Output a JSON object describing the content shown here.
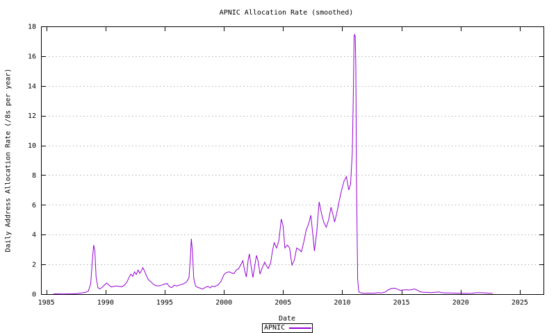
{
  "colors": {
    "background": "#ffffff",
    "frame": "#000000",
    "grid": "#b0b0b0",
    "text": "#000000",
    "series_apnic": "#9400d3"
  },
  "chart_data": {
    "type": "line",
    "title": "APNIC Allocation Rate (smoothed)",
    "xlabel": "Date",
    "ylabel": "Daily Address Allocation Rate (/8s per year)",
    "xlim": [
      1984.55,
      2027.0
    ],
    "ylim": [
      0,
      18
    ],
    "x_ticks": [
      1985,
      1990,
      1995,
      2000,
      2005,
      2010,
      2015,
      2020,
      2025
    ],
    "y_ticks": [
      0,
      2,
      4,
      6,
      8,
      10,
      12,
      14,
      16,
      18
    ],
    "grid": "horizontal-dotted",
    "legend_position": "below-plot-center",
    "series": [
      {
        "name": "APNIC",
        "color": "#9400d3",
        "points": [
          [
            1985.6,
            0.02
          ],
          [
            1986.0,
            0.02
          ],
          [
            1986.4,
            0.01
          ],
          [
            1986.8,
            0.02
          ],
          [
            1987.2,
            0.02
          ],
          [
            1987.6,
            0.04
          ],
          [
            1988.0,
            0.08
          ],
          [
            1988.3,
            0.12
          ],
          [
            1988.55,
            0.2
          ],
          [
            1988.75,
            0.7
          ],
          [
            1988.9,
            2.4
          ],
          [
            1989.0,
            3.3
          ],
          [
            1989.1,
            2.9
          ],
          [
            1989.2,
            1.2
          ],
          [
            1989.35,
            0.45
          ],
          [
            1989.5,
            0.35
          ],
          [
            1989.7,
            0.45
          ],
          [
            1989.9,
            0.6
          ],
          [
            1990.1,
            0.75
          ],
          [
            1990.3,
            0.6
          ],
          [
            1990.5,
            0.48
          ],
          [
            1990.7,
            0.52
          ],
          [
            1990.9,
            0.55
          ],
          [
            1991.1,
            0.52
          ],
          [
            1991.4,
            0.5
          ],
          [
            1991.6,
            0.62
          ],
          [
            1991.8,
            0.8
          ],
          [
            1992.0,
            1.15
          ],
          [
            1992.15,
            1.35
          ],
          [
            1992.3,
            1.2
          ],
          [
            1992.45,
            1.5
          ],
          [
            1992.6,
            1.32
          ],
          [
            1992.75,
            1.62
          ],
          [
            1992.9,
            1.4
          ],
          [
            1993.05,
            1.6
          ],
          [
            1993.15,
            1.78
          ],
          [
            1993.3,
            1.55
          ],
          [
            1993.45,
            1.25
          ],
          [
            1993.6,
            1.0
          ],
          [
            1993.8,
            0.85
          ],
          [
            1994.0,
            0.7
          ],
          [
            1994.2,
            0.58
          ],
          [
            1994.5,
            0.55
          ],
          [
            1994.8,
            0.62
          ],
          [
            1995.0,
            0.68
          ],
          [
            1995.2,
            0.72
          ],
          [
            1995.4,
            0.5
          ],
          [
            1995.6,
            0.44
          ],
          [
            1995.8,
            0.6
          ],
          [
            1996.0,
            0.55
          ],
          [
            1996.3,
            0.62
          ],
          [
            1996.6,
            0.7
          ],
          [
            1996.85,
            0.82
          ],
          [
            1997.05,
            1.1
          ],
          [
            1997.15,
            2.2
          ],
          [
            1997.25,
            3.72
          ],
          [
            1997.35,
            2.8
          ],
          [
            1997.45,
            1.1
          ],
          [
            1997.6,
            0.55
          ],
          [
            1997.8,
            0.45
          ],
          [
            1998.0,
            0.4
          ],
          [
            1998.2,
            0.34
          ],
          [
            1998.45,
            0.46
          ],
          [
            1998.65,
            0.52
          ],
          [
            1998.85,
            0.42
          ],
          [
            1999.0,
            0.55
          ],
          [
            1999.2,
            0.5
          ],
          [
            1999.5,
            0.62
          ],
          [
            1999.75,
            0.85
          ],
          [
            2000.0,
            1.3
          ],
          [
            2000.2,
            1.45
          ],
          [
            2000.45,
            1.5
          ],
          [
            2000.65,
            1.42
          ],
          [
            2000.85,
            1.38
          ],
          [
            2001.05,
            1.62
          ],
          [
            2001.25,
            1.72
          ],
          [
            2001.45,
            2.0
          ],
          [
            2001.6,
            2.25
          ],
          [
            2001.75,
            1.6
          ],
          [
            2001.9,
            1.15
          ],
          [
            2002.05,
            2.3
          ],
          [
            2002.15,
            2.7
          ],
          [
            2002.3,
            1.9
          ],
          [
            2002.45,
            1.12
          ],
          [
            2002.6,
            1.85
          ],
          [
            2002.75,
            2.6
          ],
          [
            2002.9,
            2.2
          ],
          [
            2003.05,
            1.35
          ],
          [
            2003.25,
            1.8
          ],
          [
            2003.45,
            2.15
          ],
          [
            2003.6,
            1.9
          ],
          [
            2003.75,
            1.72
          ],
          [
            2003.95,
            2.1
          ],
          [
            2004.1,
            2.9
          ],
          [
            2004.25,
            3.45
          ],
          [
            2004.45,
            3.1
          ],
          [
            2004.65,
            3.6
          ],
          [
            2004.85,
            5.05
          ],
          [
            2005.0,
            4.6
          ],
          [
            2005.15,
            3.1
          ],
          [
            2005.35,
            3.3
          ],
          [
            2005.55,
            3.1
          ],
          [
            2005.75,
            1.95
          ],
          [
            2005.95,
            2.3
          ],
          [
            2006.15,
            3.1
          ],
          [
            2006.35,
            3.0
          ],
          [
            2006.55,
            2.85
          ],
          [
            2006.75,
            3.5
          ],
          [
            2006.95,
            4.3
          ],
          [
            2007.15,
            4.7
          ],
          [
            2007.35,
            5.3
          ],
          [
            2007.5,
            4.1
          ],
          [
            2007.65,
            2.9
          ],
          [
            2007.85,
            4.2
          ],
          [
            2008.05,
            6.2
          ],
          [
            2008.25,
            5.4
          ],
          [
            2008.45,
            4.8
          ],
          [
            2008.65,
            4.5
          ],
          [
            2008.85,
            5.0
          ],
          [
            2009.05,
            5.85
          ],
          [
            2009.2,
            5.4
          ],
          [
            2009.35,
            4.85
          ],
          [
            2009.55,
            5.5
          ],
          [
            2009.75,
            6.3
          ],
          [
            2009.95,
            7.0
          ],
          [
            2010.15,
            7.6
          ],
          [
            2010.35,
            7.9
          ],
          [
            2010.55,
            7.0
          ],
          [
            2010.7,
            7.4
          ],
          [
            2010.85,
            9.5
          ],
          [
            2010.95,
            14.0
          ],
          [
            2011.0,
            17.35
          ],
          [
            2011.05,
            17.45
          ],
          [
            2011.1,
            17.3
          ],
          [
            2011.15,
            15.3
          ],
          [
            2011.2,
            8.0
          ],
          [
            2011.3,
            1.0
          ],
          [
            2011.4,
            0.15
          ],
          [
            2011.6,
            0.08
          ],
          [
            2011.9,
            0.06
          ],
          [
            2012.2,
            0.07
          ],
          [
            2012.6,
            0.06
          ],
          [
            2013.0,
            0.1
          ],
          [
            2013.3,
            0.08
          ],
          [
            2013.6,
            0.13
          ],
          [
            2013.9,
            0.3
          ],
          [
            2014.15,
            0.38
          ],
          [
            2014.4,
            0.4
          ],
          [
            2014.65,
            0.34
          ],
          [
            2014.9,
            0.25
          ],
          [
            2015.15,
            0.28
          ],
          [
            2015.4,
            0.3
          ],
          [
            2015.65,
            0.28
          ],
          [
            2015.9,
            0.31
          ],
          [
            2016.1,
            0.35
          ],
          [
            2016.3,
            0.28
          ],
          [
            2016.55,
            0.17
          ],
          [
            2016.8,
            0.13
          ],
          [
            2017.1,
            0.12
          ],
          [
            2017.5,
            0.1
          ],
          [
            2017.9,
            0.13
          ],
          [
            2018.15,
            0.15
          ],
          [
            2018.4,
            0.1
          ],
          [
            2018.7,
            0.08
          ],
          [
            2019.0,
            0.08
          ],
          [
            2019.5,
            0.07
          ],
          [
            2020.0,
            0.05
          ],
          [
            2020.5,
            0.05
          ],
          [
            2021.0,
            0.06
          ],
          [
            2021.3,
            0.1
          ],
          [
            2021.7,
            0.1
          ],
          [
            2022.1,
            0.08
          ],
          [
            2022.45,
            0.06
          ],
          [
            2022.7,
            0.05
          ]
        ]
      }
    ]
  }
}
